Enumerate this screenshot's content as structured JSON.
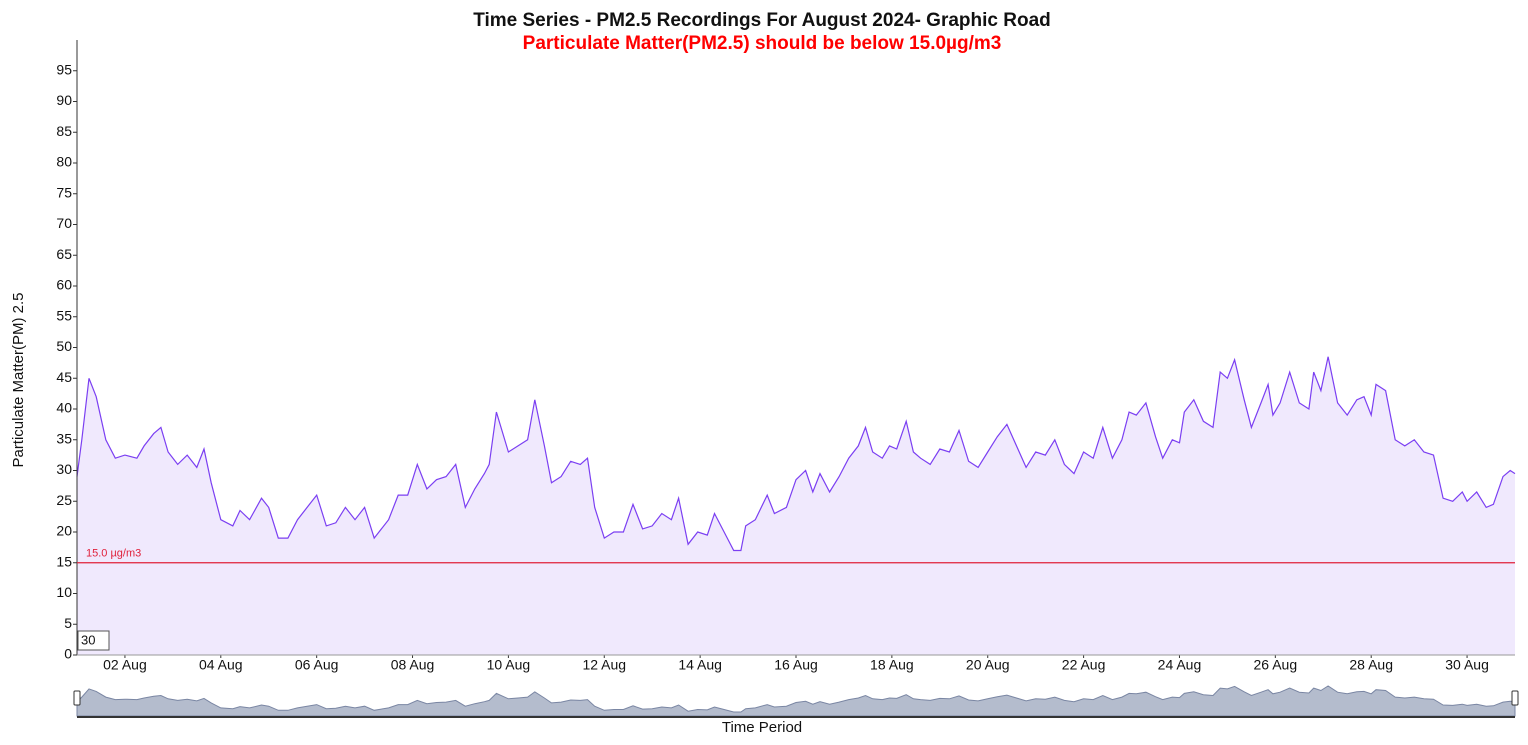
{
  "chart_data": {
    "type": "area",
    "title": "Time Series - PM2.5 Recordings For August 2024- Graphic Road",
    "subtitle": "Particulate Matter(PM2.5) should be below 15.0µg/m3",
    "y_label": "Particulate Matter(PM) 2.5",
    "x_label": "Time Period",
    "range_input": "30",
    "threshold": {
      "value": 15,
      "label": "15.0 µg/m3",
      "color": "#e0203a"
    },
    "xlim": [
      1,
      31
    ],
    "xticks": [
      {
        "value": 2,
        "label": "02 Aug"
      },
      {
        "value": 4,
        "label": "04 Aug"
      },
      {
        "value": 6,
        "label": "06 Aug"
      },
      {
        "value": 8,
        "label": "08 Aug"
      },
      {
        "value": 10,
        "label": "10 Aug"
      },
      {
        "value": 12,
        "label": "12 Aug"
      },
      {
        "value": 14,
        "label": "14 Aug"
      },
      {
        "value": 16,
        "label": "16 Aug"
      },
      {
        "value": 18,
        "label": "18 Aug"
      },
      {
        "value": 20,
        "label": "20 Aug"
      },
      {
        "value": 22,
        "label": "22 Aug"
      },
      {
        "value": 24,
        "label": "24 Aug"
      },
      {
        "value": 26,
        "label": "26 Aug"
      },
      {
        "value": 28,
        "label": "28 Aug"
      },
      {
        "value": 30,
        "label": "30 Aug"
      }
    ],
    "ylim": [
      0,
      100
    ],
    "yticks": [
      0,
      5,
      10,
      15,
      20,
      25,
      30,
      35,
      40,
      45,
      50,
      55,
      60,
      65,
      70,
      75,
      80,
      85,
      90,
      95
    ],
    "series": [
      {
        "name": "PM2.5",
        "color": "#7b3ff2",
        "fill": "#f0e9fd",
        "x": [
          1.0,
          1.1,
          1.25,
          1.4,
          1.6,
          1.8,
          2.0,
          2.25,
          2.4,
          2.6,
          2.75,
          2.9,
          3.1,
          3.3,
          3.5,
          3.65,
          3.8,
          4.0,
          4.25,
          4.4,
          4.6,
          4.85,
          5.0,
          5.2,
          5.4,
          5.6,
          5.8,
          6.0,
          6.2,
          6.4,
          6.6,
          6.8,
          7.0,
          7.2,
          7.5,
          7.7,
          7.9,
          8.1,
          8.3,
          8.5,
          8.7,
          8.9,
          9.1,
          9.3,
          9.5,
          9.6,
          9.75,
          10.0,
          10.2,
          10.4,
          10.55,
          10.75,
          10.9,
          11.1,
          11.3,
          11.5,
          11.65,
          11.8,
          12.0,
          12.2,
          12.4,
          12.6,
          12.8,
          13.0,
          13.2,
          13.4,
          13.55,
          13.75,
          13.95,
          14.15,
          14.3,
          14.5,
          14.7,
          14.85,
          14.95,
          15.15,
          15.4,
          15.55,
          15.8,
          16.0,
          16.2,
          16.35,
          16.5,
          16.7,
          16.9,
          17.1,
          17.3,
          17.45,
          17.6,
          17.8,
          17.95,
          18.1,
          18.3,
          18.45,
          18.6,
          18.8,
          19.0,
          19.2,
          19.4,
          19.6,
          19.8,
          20.0,
          20.2,
          20.4,
          20.6,
          20.8,
          21.0,
          21.2,
          21.4,
          21.6,
          21.8,
          22.0,
          22.2,
          22.4,
          22.6,
          22.8,
          22.95,
          23.1,
          23.3,
          23.5,
          23.65,
          23.85,
          24.0,
          24.1,
          24.3,
          24.5,
          24.7,
          24.85,
          25.0,
          25.15,
          25.35,
          25.5,
          25.7,
          25.85,
          25.95,
          26.1,
          26.3,
          26.5,
          26.7,
          26.8,
          26.95,
          27.1,
          27.3,
          27.5,
          27.7,
          27.85,
          28.0,
          28.1,
          28.3,
          28.5,
          28.7,
          28.9,
          29.1,
          29.3,
          29.5,
          29.7,
          29.9,
          30.0,
          30.2,
          30.4,
          30.55,
          30.75,
          30.9,
          31.0
        ],
        "values": [
          29,
          35,
          45,
          42,
          35,
          32,
          32.5,
          32,
          34,
          36,
          37,
          33,
          31,
          32.5,
          30.5,
          33.5,
          28,
          22,
          21,
          23.5,
          22,
          25.5,
          24,
          19,
          19,
          22,
          24,
          26,
          21,
          21.5,
          24,
          22,
          24,
          19,
          22,
          26,
          26,
          31,
          27,
          28.5,
          29,
          31,
          24,
          27,
          29.5,
          31,
          39.5,
          33,
          34,
          35,
          41.5,
          34,
          28,
          29,
          31.5,
          31,
          32,
          24,
          19,
          20,
          20,
          24.5,
          20.5,
          21,
          23,
          22,
          25.5,
          18,
          20,
          19.5,
          23,
          20,
          17,
          17,
          21,
          22,
          26,
          23,
          24,
          28.5,
          30,
          26.5,
          29.5,
          26.5,
          29,
          32,
          34,
          37,
          33,
          32,
          34,
          33.5,
          38,
          33,
          32,
          31,
          33.5,
          33,
          36.5,
          31.5,
          30.5,
          33,
          35.5,
          37.5,
          34,
          30.5,
          33,
          32.5,
          35,
          31,
          29.5,
          33,
          32,
          37,
          32,
          35,
          39.5,
          39,
          41,
          35.5,
          32,
          35,
          34.5,
          39.5,
          41.5,
          38,
          37,
          46,
          45,
          48,
          41.5,
          37,
          41,
          44,
          39,
          41,
          46,
          41,
          40,
          46,
          43,
          48.5,
          41,
          39,
          41.5,
          42,
          39,
          44,
          43,
          35,
          34,
          35,
          33,
          32.5,
          25.5,
          25,
          26.5,
          25,
          26.5,
          24,
          24.5,
          29,
          30,
          29.5
        ]
      }
    ]
  }
}
